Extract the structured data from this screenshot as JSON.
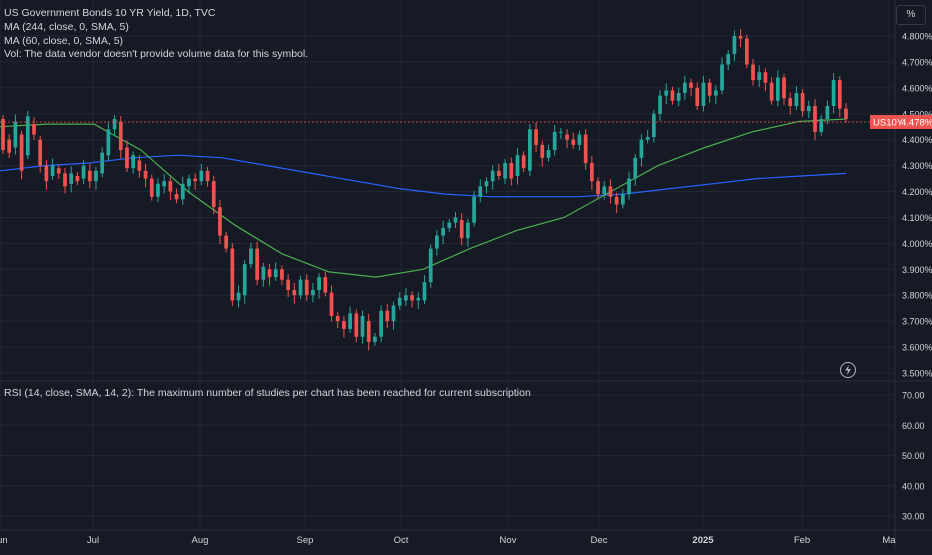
{
  "legend": {
    "symbol": "US Government Bonds 10 YR Yield, 1D, TVC",
    "ma1": "MA (244, close, 0, SMA, 5)",
    "ma2": "MA (60, close, 0, SMA, 5)",
    "vol": "Vol: The data vendor doesn't provide volume data for this symbol."
  },
  "rsi_legend": "RSI (14, close, SMA, 14, 2): The maximum number of studies per chart has been reached for current subscription",
  "scale_mode": "%",
  "price_tag": {
    "label": "US10Y",
    "value": "4.478%"
  },
  "colors": {
    "background": "#161a25",
    "up": "#26a69a",
    "down": "#ef5350",
    "ma244": "#2962ff",
    "ma60": "#4caf50",
    "grid": "#232734",
    "text": "#d1d4dc"
  },
  "chart_data": [
    {
      "type": "candlestick",
      "y_ticks": [
        "4.800%",
        "4.700%",
        "4.600%",
        "4.500%",
        "4.400%",
        "4.300%",
        "4.200%",
        "4.100%",
        "4.000%",
        "3.900%",
        "3.800%",
        "3.700%",
        "3.600%",
        "3.500%"
      ],
      "y_values": [
        4.8,
        4.7,
        4.6,
        4.5,
        4.4,
        4.3,
        4.2,
        4.1,
        4.0,
        3.9,
        3.8,
        3.7,
        3.6,
        3.5
      ],
      "x_ticks": [
        "Jun",
        "Jul",
        "Aug",
        "Sep",
        "Oct",
        "Nov",
        "Dec",
        "2025",
        "Feb",
        "Ma"
      ],
      "ylim": [
        3.5,
        4.84
      ],
      "last_value": 4.478,
      "series": [
        {
          "name": "MA (244, close, 0, SMA, 5)",
          "y": [
            4.28,
            4.3,
            4.31,
            4.33,
            4.34,
            4.33,
            4.3,
            4.27,
            4.24,
            4.21,
            4.19,
            4.18,
            4.18,
            4.18,
            4.19,
            4.21,
            4.23,
            4.25,
            4.26,
            4.27
          ]
        },
        {
          "name": "MA (60, close, 0, SMA, 5)",
          "y": [
            4.45,
            4.46,
            4.46,
            4.36,
            4.2,
            4.07,
            3.96,
            3.89,
            3.87,
            3.9,
            3.98,
            4.05,
            4.1,
            4.2,
            4.3,
            4.37,
            4.43,
            4.47,
            4.48
          ]
        }
      ],
      "candles": [
        [
          4.48,
          4.36
        ],
        [
          4.4,
          4.35
        ],
        [
          4.37,
          4.47
        ],
        [
          4.42,
          4.28
        ],
        [
          4.34,
          4.49
        ],
        [
          4.46,
          4.42
        ],
        [
          4.4,
          4.3
        ],
        [
          4.3,
          4.24
        ],
        [
          4.26,
          4.3
        ],
        [
          4.29,
          4.27
        ],
        [
          4.27,
          4.22
        ],
        [
          4.23,
          4.27
        ],
        [
          4.26,
          4.24
        ],
        [
          4.25,
          4.3
        ],
        [
          4.28,
          4.24
        ],
        [
          4.24,
          4.28
        ],
        [
          4.27,
          4.35
        ],
        [
          4.34,
          4.44
        ],
        [
          4.44,
          4.48
        ],
        [
          4.47,
          4.36
        ],
        [
          4.37,
          4.29
        ],
        [
          4.29,
          4.34
        ],
        [
          4.32,
          4.28
        ],
        [
          4.28,
          4.25
        ],
        [
          4.25,
          4.18
        ],
        [
          4.18,
          4.23
        ],
        [
          4.22,
          4.24
        ],
        [
          4.24,
          4.2
        ],
        [
          4.19,
          4.17
        ],
        [
          4.17,
          4.23
        ],
        [
          4.22,
          4.25
        ],
        [
          4.25,
          4.24
        ],
        [
          4.24,
          4.28
        ],
        [
          4.28,
          4.24
        ],
        [
          4.24,
          4.14
        ],
        [
          4.14,
          4.03
        ],
        [
          4.03,
          3.98
        ],
        [
          3.98,
          3.78
        ],
        [
          3.78,
          3.81
        ],
        [
          3.8,
          3.92
        ],
        [
          3.92,
          3.98
        ],
        [
          3.98,
          3.86
        ],
        [
          3.86,
          3.91
        ],
        [
          3.9,
          3.87
        ],
        [
          3.87,
          3.9
        ],
        [
          3.9,
          3.86
        ],
        [
          3.86,
          3.82
        ],
        [
          3.82,
          3.8
        ],
        [
          3.8,
          3.86
        ],
        [
          3.86,
          3.8
        ],
        [
          3.8,
          3.82
        ],
        [
          3.82,
          3.87
        ],
        [
          3.87,
          3.81
        ],
        [
          3.81,
          3.72
        ],
        [
          3.72,
          3.7
        ],
        [
          3.7,
          3.67
        ],
        [
          3.67,
          3.73
        ],
        [
          3.73,
          3.64
        ],
        [
          3.64,
          3.72
        ],
        [
          3.7,
          3.62
        ],
        [
          3.62,
          3.64
        ],
        [
          3.64,
          3.74
        ],
        [
          3.74,
          3.7
        ],
        [
          3.7,
          3.76
        ],
        [
          3.76,
          3.79
        ],
        [
          3.78,
          3.8
        ],
        [
          3.8,
          3.78
        ],
        [
          3.78,
          3.79
        ],
        [
          3.78,
          3.85
        ],
        [
          3.85,
          3.98
        ],
        [
          3.98,
          4.03
        ],
        [
          4.03,
          4.06
        ],
        [
          4.06,
          4.08
        ],
        [
          4.08,
          4.1
        ],
        [
          4.09,
          4.02
        ],
        [
          4.02,
          4.08
        ],
        [
          4.08,
          4.18
        ],
        [
          4.18,
          4.22
        ],
        [
          4.22,
          4.24
        ],
        [
          4.24,
          4.28
        ],
        [
          4.28,
          4.26
        ],
        [
          4.25,
          4.31
        ],
        [
          4.31,
          4.25
        ],
        [
          4.26,
          4.34
        ],
        [
          4.34,
          4.29
        ],
        [
          4.28,
          4.44
        ],
        [
          4.44,
          4.38
        ],
        [
          4.38,
          4.33
        ],
        [
          4.33,
          4.36
        ],
        [
          4.36,
          4.43
        ],
        [
          4.43,
          4.43
        ],
        [
          4.42,
          4.4
        ],
        [
          4.4,
          4.38
        ],
        [
          4.38,
          4.42
        ],
        [
          4.42,
          4.31
        ],
        [
          4.31,
          4.24
        ],
        [
          4.24,
          4.19
        ],
        [
          4.19,
          4.22
        ],
        [
          4.22,
          4.18
        ],
        [
          4.18,
          4.15
        ],
        [
          4.15,
          4.19
        ],
        [
          4.19,
          4.25
        ],
        [
          4.25,
          4.33
        ],
        [
          4.33,
          4.4
        ],
        [
          4.4,
          4.41
        ],
        [
          4.41,
          4.5
        ],
        [
          4.5,
          4.57
        ],
        [
          4.57,
          4.59
        ],
        [
          4.59,
          4.55
        ],
        [
          4.55,
          4.58
        ],
        [
          4.58,
          4.62
        ],
        [
          4.62,
          4.6
        ],
        [
          4.6,
          4.53
        ],
        [
          4.53,
          4.62
        ],
        [
          4.62,
          4.57
        ],
        [
          4.57,
          4.59
        ],
        [
          4.59,
          4.69
        ],
        [
          4.69,
          4.73
        ],
        [
          4.73,
          4.8
        ],
        [
          4.8,
          4.79
        ],
        [
          4.79,
          4.69
        ],
        [
          4.69,
          4.63
        ],
        [
          4.63,
          4.66
        ],
        [
          4.66,
          4.62
        ],
        [
          4.62,
          4.55
        ],
        [
          4.55,
          4.64
        ],
        [
          4.64,
          4.56
        ],
        [
          4.56,
          4.53
        ],
        [
          4.53,
          4.58
        ],
        [
          4.58,
          4.51
        ],
        [
          4.51,
          4.53
        ],
        [
          4.53,
          4.43
        ],
        [
          4.43,
          4.48
        ],
        [
          4.48,
          4.53
        ],
        [
          4.53,
          4.63
        ],
        [
          4.63,
          4.52
        ],
        [
          4.52,
          4.48
        ]
      ]
    },
    {
      "type": "line",
      "name": "RSI (14, close, SMA, 14, 2)",
      "y_ticks": [
        "70.00",
        "60.00",
        "50.00",
        "40.00",
        "30.00"
      ],
      "y_values": [
        70,
        60,
        50,
        40,
        30
      ],
      "series": []
    }
  ]
}
